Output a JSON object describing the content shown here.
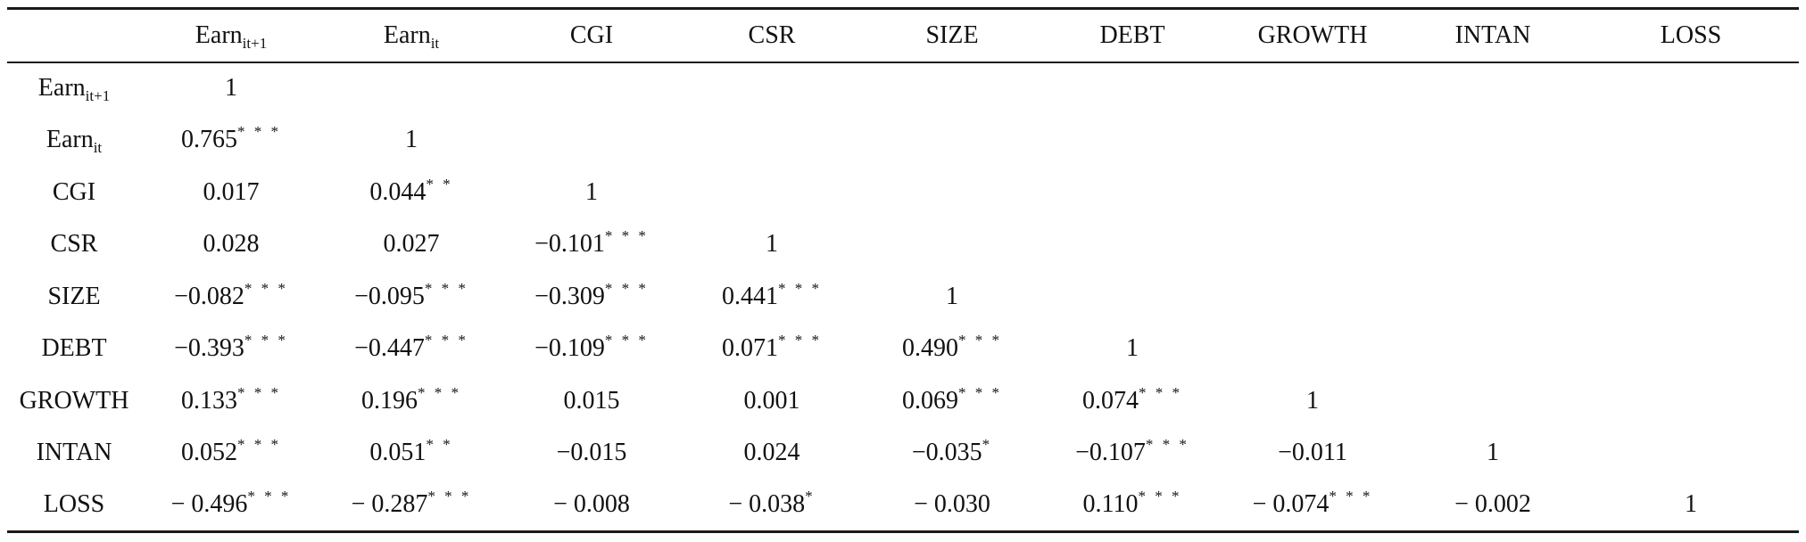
{
  "table": {
    "columns": [
      {
        "base": "Earn",
        "sub": "it+1"
      },
      {
        "base": "Earn",
        "sub": "it"
      },
      {
        "base": "CGI",
        "sub": ""
      },
      {
        "base": "CSR",
        "sub": ""
      },
      {
        "base": "SIZE",
        "sub": ""
      },
      {
        "base": "DEBT",
        "sub": ""
      },
      {
        "base": "GROWTH",
        "sub": ""
      },
      {
        "base": "INTAN",
        "sub": ""
      },
      {
        "base": "LOSS",
        "sub": ""
      }
    ],
    "rows": [
      {
        "label": {
          "base": "Earn",
          "sub": "it+1"
        },
        "cells": [
          {
            "value": "1",
            "stars": ""
          }
        ]
      },
      {
        "label": {
          "base": "Earn",
          "sub": "it"
        },
        "cells": [
          {
            "value": "0.765",
            "stars": "* * *"
          },
          {
            "value": "1",
            "stars": ""
          }
        ]
      },
      {
        "label": {
          "base": "CGI",
          "sub": ""
        },
        "cells": [
          {
            "value": "0.017",
            "stars": ""
          },
          {
            "value": "0.044",
            "stars": "* *"
          },
          {
            "value": "1",
            "stars": ""
          }
        ]
      },
      {
        "label": {
          "base": "CSR",
          "sub": ""
        },
        "cells": [
          {
            "value": "0.028",
            "stars": ""
          },
          {
            "value": "0.027",
            "stars": ""
          },
          {
            "value": "−0.101",
            "stars": "* * *"
          },
          {
            "value": "1",
            "stars": ""
          }
        ]
      },
      {
        "label": {
          "base": "SIZE",
          "sub": ""
        },
        "cells": [
          {
            "value": "−0.082",
            "stars": "* * *"
          },
          {
            "value": "−0.095",
            "stars": "* * *"
          },
          {
            "value": "−0.309",
            "stars": "* * *"
          },
          {
            "value": "0.441",
            "stars": "* * *"
          },
          {
            "value": "1",
            "stars": ""
          }
        ]
      },
      {
        "label": {
          "base": "DEBT",
          "sub": ""
        },
        "cells": [
          {
            "value": "−0.393",
            "stars": "* * *"
          },
          {
            "value": "−0.447",
            "stars": "* * *"
          },
          {
            "value": "−0.109",
            "stars": "* * *"
          },
          {
            "value": "0.071",
            "stars": "* * *"
          },
          {
            "value": "0.490",
            "stars": "* * *"
          },
          {
            "value": "1",
            "stars": ""
          }
        ]
      },
      {
        "label": {
          "base": "GROWTH",
          "sub": ""
        },
        "cells": [
          {
            "value": "0.133",
            "stars": "* * *"
          },
          {
            "value": "0.196",
            "stars": "* * *"
          },
          {
            "value": "0.015",
            "stars": ""
          },
          {
            "value": "0.001",
            "stars": ""
          },
          {
            "value": "0.069",
            "stars": "* * *"
          },
          {
            "value": "0.074",
            "stars": "* * *"
          },
          {
            "value": "1",
            "stars": ""
          }
        ]
      },
      {
        "label": {
          "base": "INTAN",
          "sub": ""
        },
        "cells": [
          {
            "value": "0.052",
            "stars": "* * *"
          },
          {
            "value": "0.051",
            "stars": "* *"
          },
          {
            "value": "−0.015",
            "stars": ""
          },
          {
            "value": "0.024",
            "stars": ""
          },
          {
            "value": "−0.035",
            "stars": "*"
          },
          {
            "value": "−0.107",
            "stars": "* * *"
          },
          {
            "value": "−0.011",
            "stars": ""
          },
          {
            "value": "1",
            "stars": ""
          }
        ]
      },
      {
        "label": {
          "base": "LOSS",
          "sub": ""
        },
        "cells": [
          {
            "value": "− 0.496",
            "stars": "* * *"
          },
          {
            "value": "− 0.287",
            "stars": "* * *"
          },
          {
            "value": "− 0.008",
            "stars": ""
          },
          {
            "value": "− 0.038",
            "stars": "*"
          },
          {
            "value": "− 0.030",
            "stars": ""
          },
          {
            "value": "0.110",
            "stars": "* * *"
          },
          {
            "value": "− 0.074",
            "stars": "* * *"
          },
          {
            "value": "− 0.002",
            "stars": ""
          },
          {
            "value": "1",
            "stars": ""
          }
        ]
      }
    ]
  }
}
